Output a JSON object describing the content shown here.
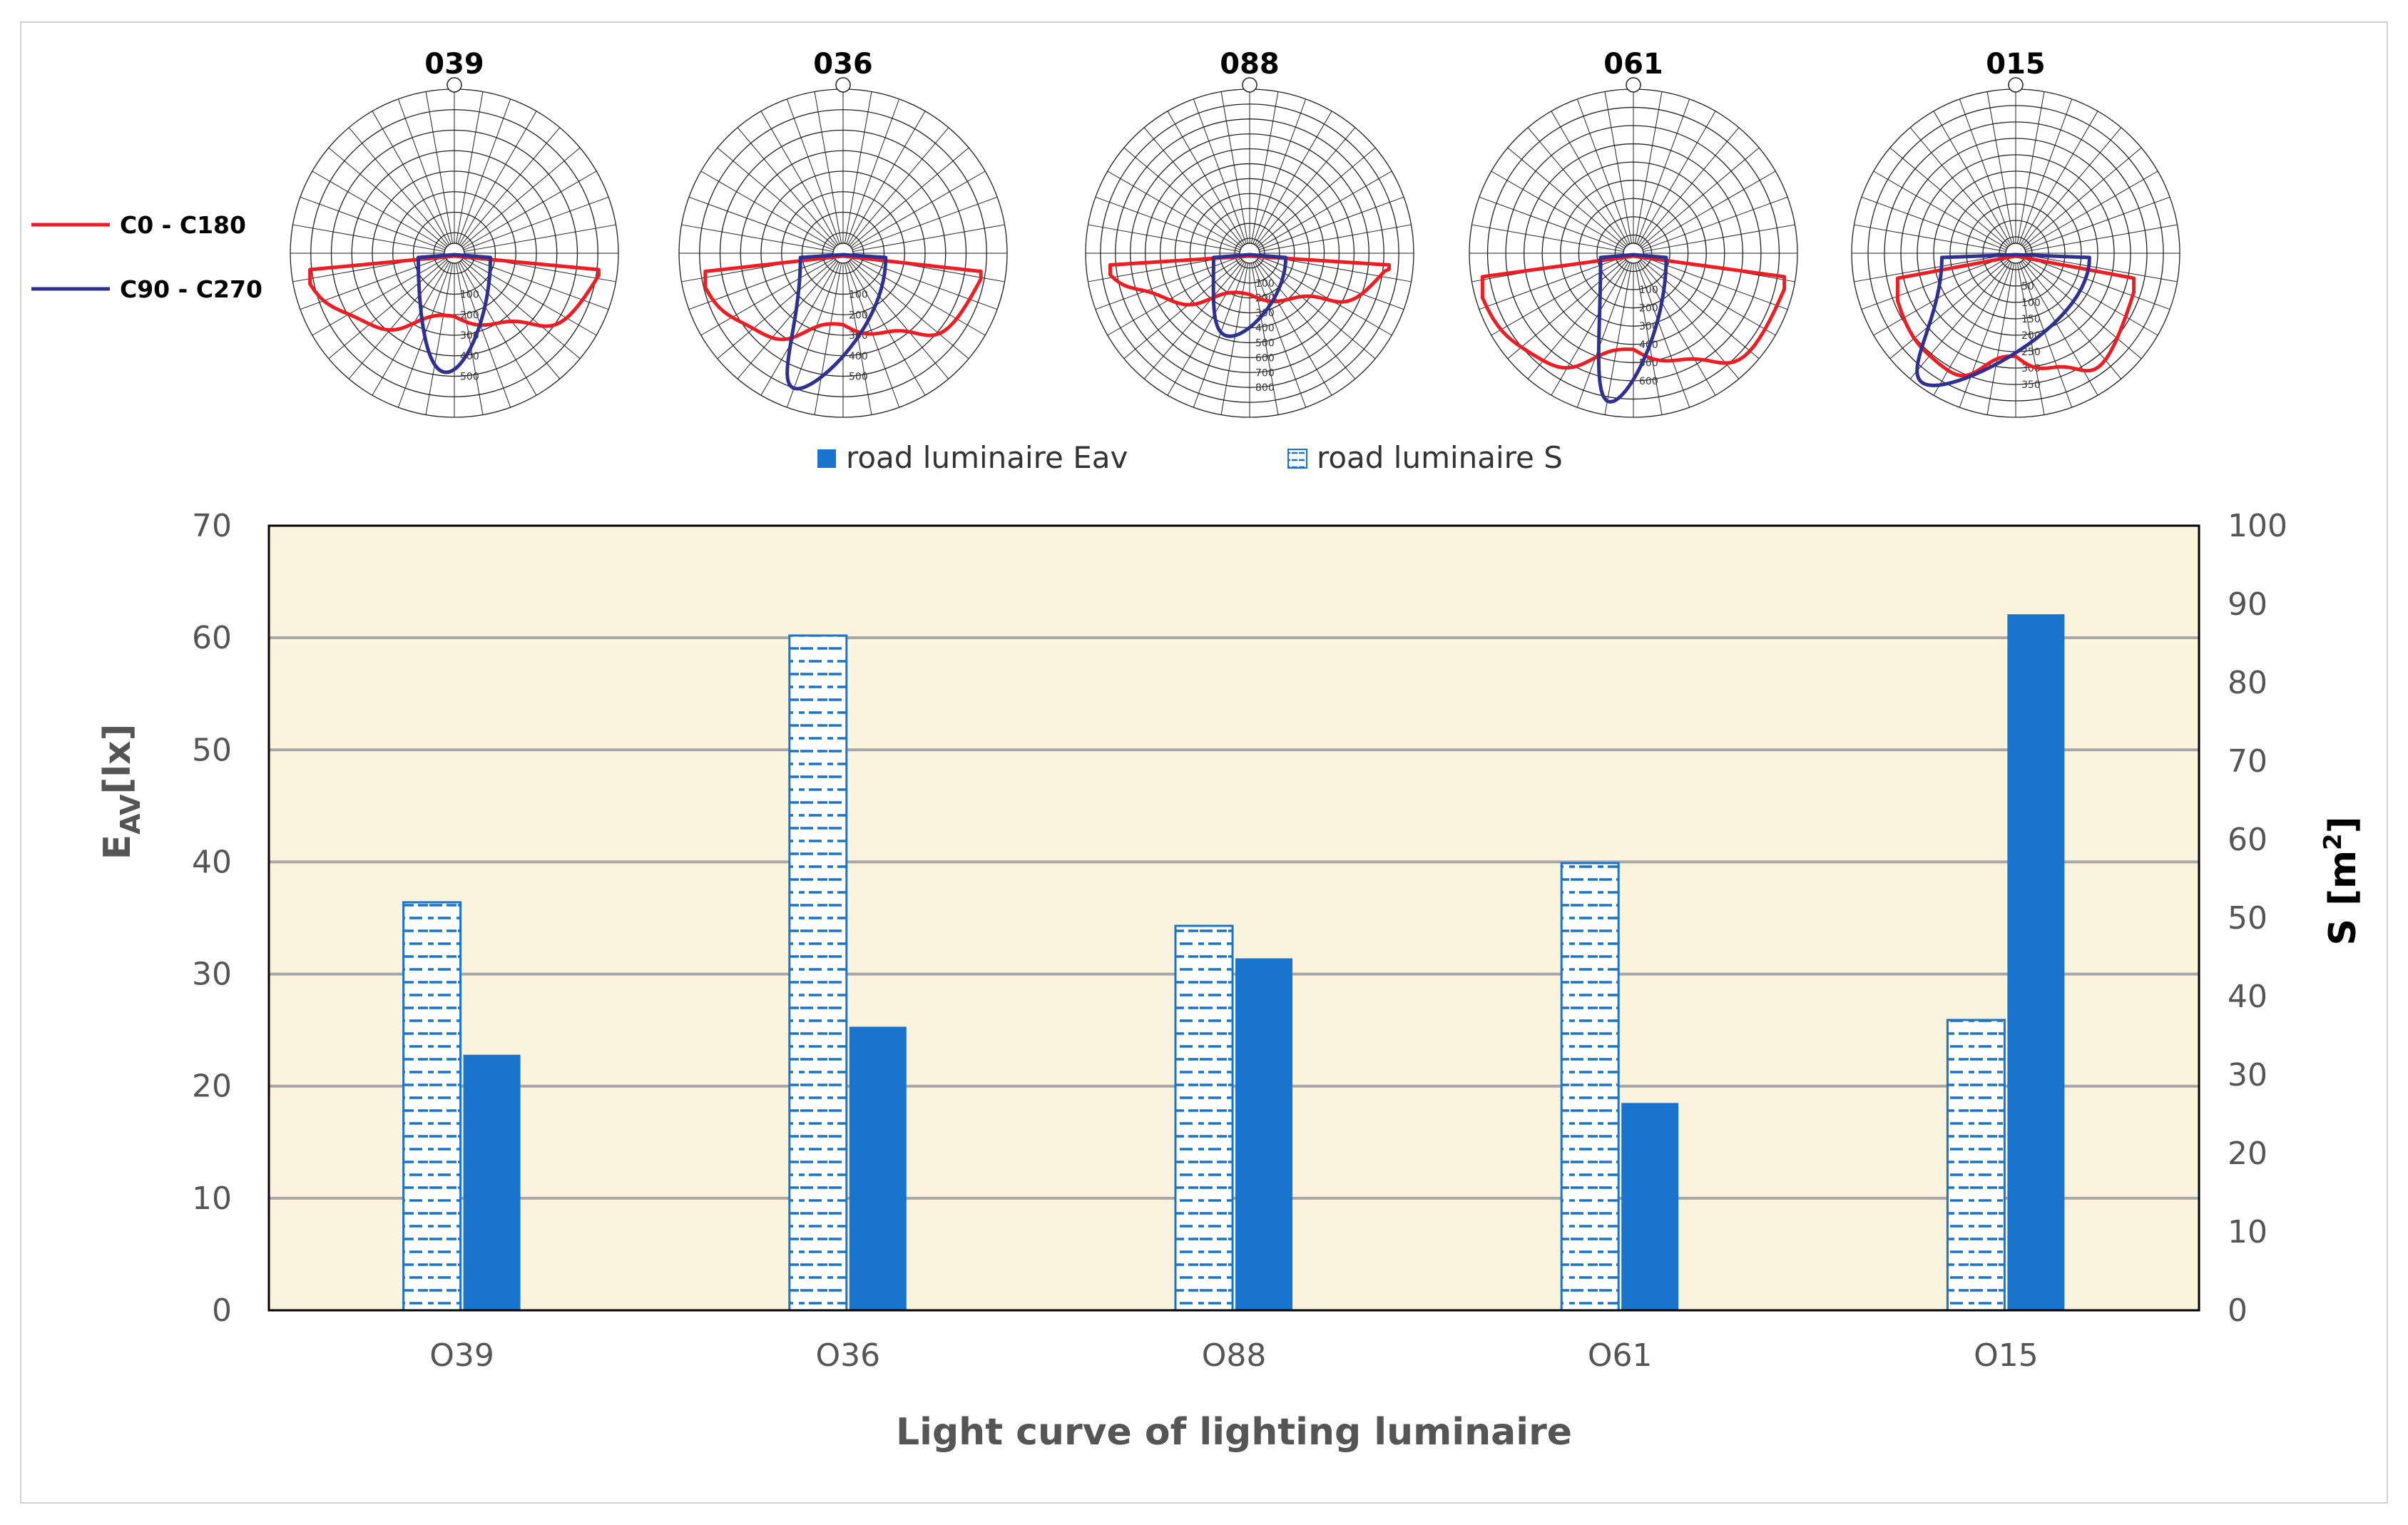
{
  "polar_legend": {
    "series": [
      {
        "name": "C0 - C180",
        "color": "#ee1d23"
      },
      {
        "name": "C90 - C270",
        "color": "#2e3192"
      }
    ]
  },
  "polar_plots": [
    {
      "title": "039",
      "rings": [
        "100",
        "200",
        "300",
        "400",
        "500"
      ],
      "red_depth": 0.46,
      "red_width": 0.88,
      "blue_depth": 0.7,
      "blue_width": 0.22,
      "blue_skew": -0.05
    },
    {
      "title": "036",
      "rings": [
        "100",
        "200",
        "300",
        "400",
        "500"
      ],
      "red_depth": 0.52,
      "red_width": 0.84,
      "blue_depth": 0.8,
      "blue_width": 0.26,
      "blue_skew": -0.28
    },
    {
      "title": "088",
      "rings": [
        "100",
        "200",
        "300",
        "400",
        "500",
        "600",
        "700",
        "800"
      ],
      "red_depth": 0.3,
      "red_width": 0.85,
      "blue_depth": 0.48,
      "blue_width": 0.22,
      "blue_skew": -0.12
    },
    {
      "title": "061",
      "rings": [
        "100",
        "200",
        "300",
        "400",
        "500",
        "600"
      ],
      "red_depth": 0.7,
      "red_width": 0.92,
      "blue_depth": 0.88,
      "blue_width": 0.2,
      "blue_skew": -0.14
    },
    {
      "title": "015",
      "rings": [
        "50",
        "100",
        "150",
        "200",
        "250",
        "300",
        "350"
      ],
      "red_depth": 0.75,
      "red_width": 0.72,
      "blue_depth": 0.78,
      "blue_width": 0.45,
      "blue_skew": -0.5
    }
  ],
  "chart_data": {
    "type": "bar",
    "categories": [
      "O39",
      "O36",
      "O88",
      "O61",
      "O15"
    ],
    "series": [
      {
        "name": "road luminaire S",
        "axis": "right",
        "style": "pattern",
        "color": "#1874cd",
        "values": [
          52,
          86,
          49,
          57,
          37
        ]
      },
      {
        "name": "road luminaire Eav",
        "axis": "left",
        "style": "solid",
        "color": "#1874cd",
        "values": [
          22.8,
          25.3,
          31.4,
          18.5,
          62.1
        ]
      }
    ],
    "legend": [
      "road luminaire Eav",
      "road luminaire S"
    ],
    "xlabel": "Light curve  of lighting luminaire",
    "ylabel_left": {
      "main": "E",
      "sub": "AV",
      "rest": "[lx]"
    },
    "ylabel_right": {
      "main": "S [m",
      "sup": "2",
      "rest": "]"
    },
    "ylim_left": [
      0,
      70
    ],
    "yticks_left": [
      0,
      10,
      20,
      30,
      40,
      50,
      60,
      70
    ],
    "ylim_right": [
      0,
      100
    ],
    "yticks_right": [
      0,
      10,
      20,
      30,
      40,
      50,
      60,
      70,
      80,
      90,
      100
    ],
    "grid": true,
    "plot_background": "#fcf3dc",
    "grid_color": "#a6a6a6"
  }
}
